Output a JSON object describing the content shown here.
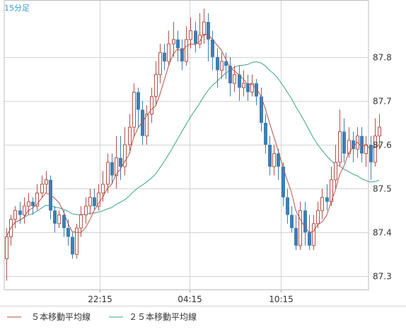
{
  "chart_data": {
    "type": "candlestick",
    "timeframe_label": "15分足",
    "x_tick_labels": [
      "22:15",
      "04:15",
      "10:15"
    ],
    "y_ticks": [
      87.3,
      87.4,
      87.5,
      87.6,
      87.7,
      87.8
    ],
    "y_range": [
      87.27,
      87.93
    ],
    "grid": true,
    "colors": {
      "up": "#b5524a",
      "down": "#3d7fb5",
      "ma5": "#b5524a",
      "ma25": "#3aa58a",
      "label": "#3399cc",
      "grid": "#d4d4d4"
    },
    "series": [
      {
        "name": "５本移動平均線",
        "color": "#b5524a"
      },
      {
        "name": "２５本移動平均線",
        "color": "#3aa58a"
      }
    ],
    "candles": [
      [
        87.34,
        87.39,
        87.29,
        87.41
      ],
      [
        87.39,
        87.43,
        87.37,
        87.44
      ],
      [
        87.43,
        87.45,
        87.41,
        87.46
      ],
      [
        87.45,
        87.44,
        87.42,
        87.47
      ],
      [
        87.44,
        87.46,
        87.42,
        87.48
      ],
      [
        87.46,
        87.47,
        87.44,
        87.49
      ],
      [
        87.47,
        87.46,
        87.44,
        87.48
      ],
      [
        87.46,
        87.49,
        87.45,
        87.51
      ],
      [
        87.49,
        87.51,
        87.48,
        87.53
      ],
      [
        87.51,
        87.52,
        87.49,
        87.54
      ],
      [
        87.52,
        87.45,
        87.43,
        87.53
      ],
      [
        87.45,
        87.42,
        87.4,
        87.46
      ],
      [
        87.42,
        87.44,
        87.41,
        87.45
      ],
      [
        87.44,
        87.41,
        87.39,
        87.45
      ],
      [
        87.41,
        87.39,
        87.37,
        87.43
      ],
      [
        87.39,
        87.35,
        87.34,
        87.4
      ],
      [
        87.35,
        87.41,
        87.34,
        87.42
      ],
      [
        87.41,
        87.44,
        87.39,
        87.46
      ],
      [
        87.44,
        87.46,
        87.42,
        87.48
      ],
      [
        87.46,
        87.48,
        87.44,
        87.5
      ],
      [
        87.48,
        87.46,
        87.45,
        87.5
      ],
      [
        87.46,
        87.49,
        87.45,
        87.51
      ],
      [
        87.49,
        87.51,
        87.47,
        87.54
      ],
      [
        87.51,
        87.56,
        87.49,
        87.58
      ],
      [
        87.56,
        87.53,
        87.51,
        87.58
      ],
      [
        87.53,
        87.57,
        87.5,
        87.62
      ],
      [
        87.57,
        87.55,
        87.52,
        87.62
      ],
      [
        87.55,
        87.6,
        87.53,
        87.64
      ],
      [
        87.6,
        87.64,
        87.58,
        87.67
      ],
      [
        87.64,
        87.72,
        87.62,
        87.74
      ],
      [
        87.72,
        87.68,
        87.64,
        87.73
      ],
      [
        87.68,
        87.62,
        87.6,
        87.7
      ],
      [
        87.62,
        87.67,
        87.6,
        87.69
      ],
      [
        87.67,
        87.71,
        87.65,
        87.73
      ],
      [
        87.71,
        87.76,
        87.69,
        87.79
      ],
      [
        87.76,
        87.81,
        87.74,
        87.83
      ],
      [
        87.81,
        87.79,
        87.77,
        87.83
      ],
      [
        87.79,
        87.83,
        87.78,
        87.86
      ],
      [
        87.83,
        87.84,
        87.8,
        87.88
      ],
      [
        87.84,
        87.82,
        87.79,
        87.86
      ],
      [
        87.82,
        87.79,
        87.77,
        87.84
      ],
      [
        87.79,
        87.84,
        87.78,
        87.87
      ],
      [
        87.84,
        87.86,
        87.82,
        87.89
      ],
      [
        87.86,
        87.83,
        87.81,
        87.88
      ],
      [
        87.83,
        87.85,
        87.82,
        87.9
      ],
      [
        87.85,
        87.88,
        87.83,
        87.91
      ],
      [
        87.88,
        87.84,
        87.79,
        87.9
      ],
      [
        87.84,
        87.8,
        87.77,
        87.86
      ],
      [
        87.8,
        87.77,
        87.73,
        87.82
      ],
      [
        87.77,
        87.79,
        87.75,
        87.81
      ],
      [
        87.79,
        87.78,
        87.75,
        87.81
      ],
      [
        87.78,
        87.74,
        87.71,
        87.8
      ],
      [
        87.74,
        87.76,
        87.72,
        87.78
      ],
      [
        87.76,
        87.73,
        87.7,
        87.78
      ],
      [
        87.73,
        87.74,
        87.71,
        87.77
      ],
      [
        87.74,
        87.72,
        87.7,
        87.76
      ],
      [
        87.72,
        87.74,
        87.71,
        87.76
      ],
      [
        87.74,
        87.71,
        87.69,
        87.75
      ],
      [
        87.71,
        87.65,
        87.63,
        87.73
      ],
      [
        87.65,
        87.6,
        87.58,
        87.67
      ],
      [
        87.6,
        87.55,
        87.53,
        87.62
      ],
      [
        87.55,
        87.58,
        87.53,
        87.6
      ],
      [
        87.58,
        87.55,
        87.52,
        87.59
      ],
      [
        87.55,
        87.48,
        87.46,
        87.56
      ],
      [
        87.48,
        87.44,
        87.42,
        87.5
      ],
      [
        87.44,
        87.41,
        87.4,
        87.46
      ],
      [
        87.41,
        87.37,
        87.36,
        87.44
      ],
      [
        87.37,
        87.45,
        87.36,
        87.47
      ],
      [
        87.45,
        87.4,
        87.37,
        87.47
      ],
      [
        87.4,
        87.37,
        87.36,
        87.44
      ],
      [
        87.37,
        87.42,
        87.36,
        87.44
      ],
      [
        87.42,
        87.45,
        87.41,
        87.47
      ],
      [
        87.45,
        87.48,
        87.43,
        87.5
      ],
      [
        87.48,
        87.47,
        87.45,
        87.51
      ],
      [
        87.47,
        87.52,
        87.46,
        87.55
      ],
      [
        87.52,
        87.56,
        87.5,
        87.6
      ],
      [
        87.56,
        87.63,
        87.55,
        87.68
      ],
      [
        87.63,
        87.58,
        87.56,
        87.66
      ],
      [
        87.58,
        87.61,
        87.57,
        87.64
      ],
      [
        87.61,
        87.59,
        87.56,
        87.63
      ],
      [
        87.59,
        87.62,
        87.57,
        87.64
      ],
      [
        87.62,
        87.58,
        87.56,
        87.64
      ],
      [
        87.58,
        87.6,
        87.55,
        87.62
      ],
      [
        87.6,
        87.56,
        87.52,
        87.62
      ],
      [
        87.56,
        87.62,
        87.55,
        87.66
      ],
      [
        87.62,
        87.64,
        87.59,
        87.67
      ]
    ]
  },
  "labels": {
    "timeframe": "15分足",
    "legend_ma5": "５本移動平均線",
    "legend_ma25": "２５本移動平均線"
  }
}
